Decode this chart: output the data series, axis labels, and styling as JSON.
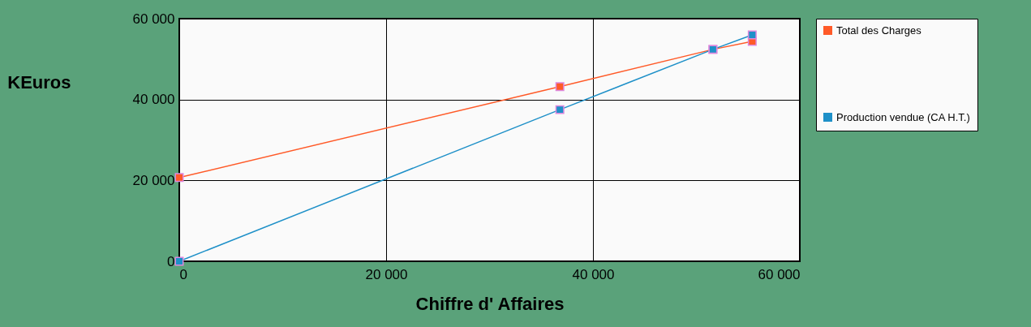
{
  "chart_data": {
    "type": "line",
    "xlabel": "Chiffre d' Affaires",
    "ylabel": "KEuros",
    "xlim": [
      0,
      60000
    ],
    "ylim": [
      0,
      60000
    ],
    "xticks": [
      {
        "value": 0,
        "label": "0"
      },
      {
        "value": 20000,
        "label": "20 000"
      },
      {
        "value": 40000,
        "label": "40 000"
      },
      {
        "value": 60000,
        "label": "60 000"
      }
    ],
    "yticks": [
      {
        "value": 0,
        "label": "0"
      },
      {
        "value": 20000,
        "label": "20 000"
      },
      {
        "value": 40000,
        "label": "40 000"
      },
      {
        "value": 60000,
        "label": "60 000"
      }
    ],
    "grid": true,
    "legend": "right",
    "marker": "square",
    "line_style": "solid",
    "series": [
      {
        "name": "Total des Charges",
        "color": "#ff5a28",
        "x": [
          0,
          36800,
          51600,
          55400
        ],
        "values": [
          20700,
          43200,
          52400,
          54400
        ]
      },
      {
        "name": "Production vendue (CA H.T.)",
        "color": "#1e90c8",
        "x": [
          0,
          36800,
          51600,
          55400
        ],
        "values": [
          0,
          37500,
          52400,
          56000
        ]
      }
    ]
  }
}
